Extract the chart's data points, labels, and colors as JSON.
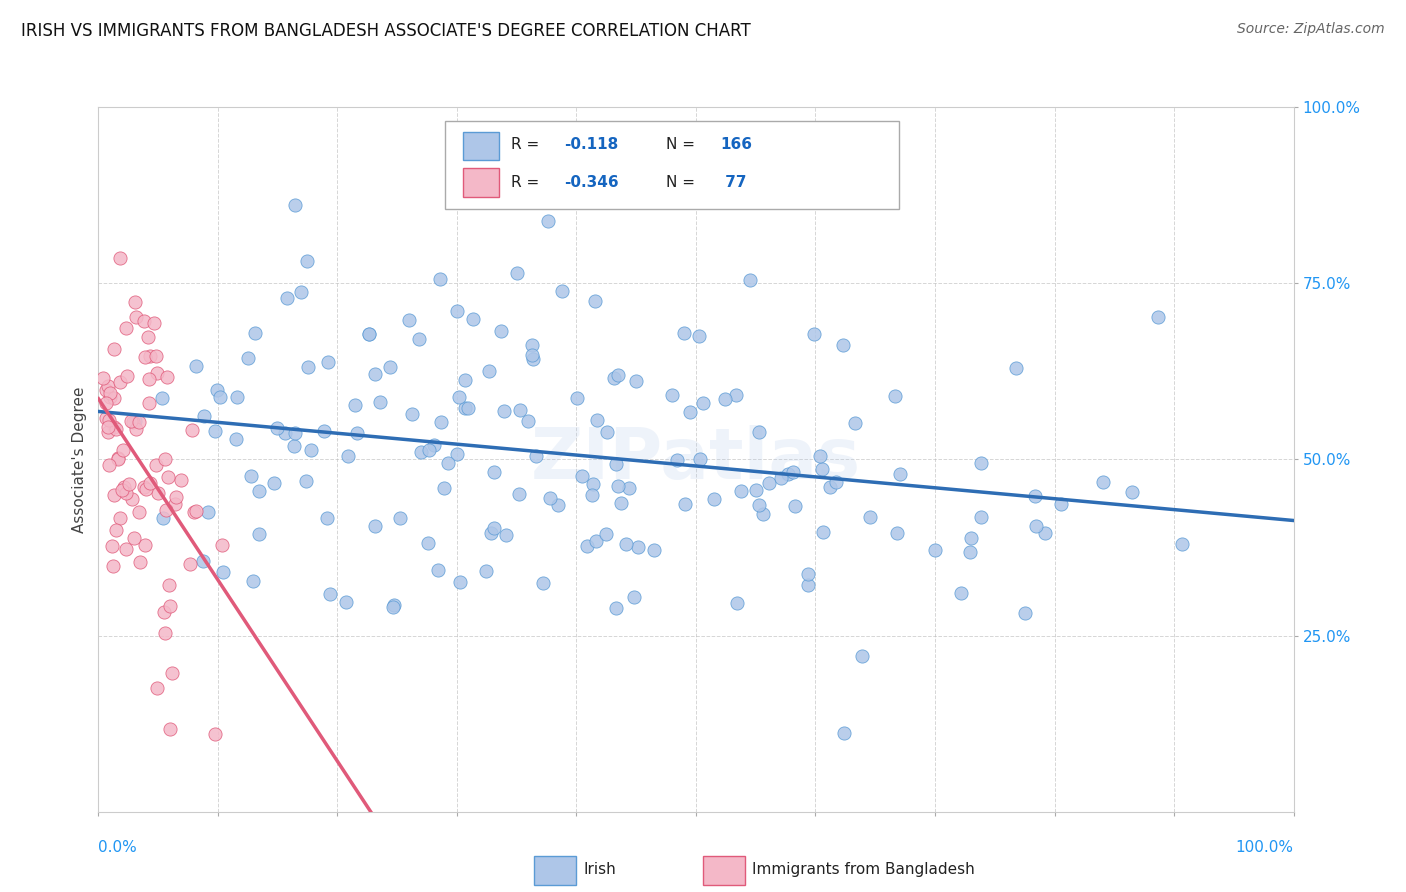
{
  "title": "IRISH VS IMMIGRANTS FROM BANGLADESH ASSOCIATE'S DEGREE CORRELATION CHART",
  "source": "Source: ZipAtlas.com",
  "ylabel": "Associate's Degree",
  "irish_color": "#aec6e8",
  "irish_edge_color": "#5b9bd5",
  "bangladesh_color": "#f4b8c8",
  "bangladesh_edge_color": "#e05a7a",
  "irish_line_color": "#2e6db4",
  "bangladesh_line_color": "#e05a7a",
  "watermark": "ZIPatlas",
  "R_irish": -0.118,
  "N_irish": 166,
  "R_bangladesh": -0.346,
  "N_bangladesh": 77,
  "xlim": [
    0.0,
    1.0
  ],
  "ylim": [
    0.0,
    1.0
  ],
  "background_color": "#ffffff",
  "grid_color": "#bbbbbb",
  "title_fontsize": 13,
  "source_fontsize": 10,
  "irish_line_start_y": 0.52,
  "irish_line_end_y": 0.44,
  "bangladesh_line_start_y": 0.525,
  "bangladesh_line_end_x": 0.32
}
